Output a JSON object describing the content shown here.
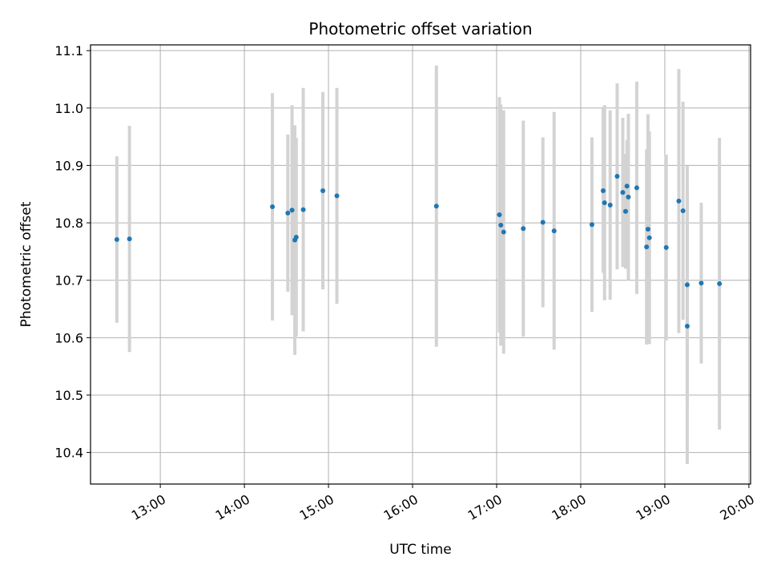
{
  "chart_data": {
    "type": "scatter",
    "title": "Photometric offset variation",
    "xlabel": "UTC time",
    "ylabel": "Photometric offset",
    "x_tick_labels": [
      "13:00",
      "14:00",
      "15:00",
      "16:00",
      "17:00",
      "18:00",
      "19:00",
      "20:00"
    ],
    "x_tick_hours": [
      13,
      14,
      15,
      16,
      17,
      18,
      19,
      20
    ],
    "xlim_hours": [
      12.17,
      20.02
    ],
    "y_tick_labels": [
      "10.4",
      "10.5",
      "10.6",
      "10.7",
      "10.8",
      "10.9",
      "11.0",
      "11.1"
    ],
    "y_ticks": [
      10.4,
      10.5,
      10.6,
      10.7,
      10.8,
      10.9,
      11.0,
      11.1
    ],
    "ylim": [
      10.345,
      11.11
    ],
    "grid": true,
    "point_color": "#1f77b4",
    "errorbar_color": "#d3d3d3",
    "points": [
      {
        "t": "12:29",
        "y": 10.771,
        "err": 0.145
      },
      {
        "t": "12:38",
        "y": 10.772,
        "err": 0.197
      },
      {
        "t": "14:20",
        "y": 10.828,
        "err": 0.198
      },
      {
        "t": "14:31",
        "y": 10.817,
        "err": 0.137
      },
      {
        "t": "14:34",
        "y": 10.822,
        "err": 0.183
      },
      {
        "t": "14:36",
        "y": 10.77,
        "err": 0.2
      },
      {
        "t": "14:37",
        "y": 10.775,
        "err": 0.173
      },
      {
        "t": "14:42",
        "y": 10.823,
        "err": 0.212
      },
      {
        "t": "14:56",
        "y": 10.856,
        "err": 0.172
      },
      {
        "t": "15:06",
        "y": 10.847,
        "err": 0.188
      },
      {
        "t": "16:17",
        "y": 10.829,
        "err": 0.245
      },
      {
        "t": "17:02",
        "y": 10.814,
        "err": 0.205
      },
      {
        "t": "17:03",
        "y": 10.796,
        "err": 0.21
      },
      {
        "t": "17:05",
        "y": 10.784,
        "err": 0.212
      },
      {
        "t": "17:19",
        "y": 10.79,
        "err": 0.188
      },
      {
        "t": "17:33",
        "y": 10.801,
        "err": 0.148
      },
      {
        "t": "17:41",
        "y": 10.786,
        "err": 0.207
      },
      {
        "t": "18:08",
        "y": 10.797,
        "err": 0.152
      },
      {
        "t": "18:16",
        "y": 10.856,
        "err": 0.143
      },
      {
        "t": "18:17",
        "y": 10.835,
        "err": 0.17
      },
      {
        "t": "18:21",
        "y": 10.831,
        "err": 0.165
      },
      {
        "t": "18:26",
        "y": 10.881,
        "err": 0.162
      },
      {
        "t": "18:30",
        "y": 10.853,
        "err": 0.13
      },
      {
        "t": "18:32",
        "y": 10.82,
        "err": 0.1
      },
      {
        "t": "18:33",
        "y": 10.864,
        "err": 0.08
      },
      {
        "t": "18:34",
        "y": 10.845,
        "err": 0.145
      },
      {
        "t": "18:40",
        "y": 10.861,
        "err": 0.185
      },
      {
        "t": "18:47",
        "y": 10.758,
        "err": 0.17
      },
      {
        "t": "18:48",
        "y": 10.789,
        "err": 0.2
      },
      {
        "t": "18:49",
        "y": 10.774,
        "err": 0.185
      },
      {
        "t": "19:01",
        "y": 10.757,
        "err": 0.162
      },
      {
        "t": "19:10",
        "y": 10.838,
        "err": 0.23
      },
      {
        "t": "19:13",
        "y": 10.821,
        "err": 0.19
      },
      {
        "t": "19:16",
        "y": 10.692,
        "err": 0.207
      },
      {
        "t": "19:16",
        "y": 10.62,
        "err": 0.24
      },
      {
        "t": "19:26",
        "y": 10.695,
        "err": 0.14
      },
      {
        "t": "19:39",
        "y": 10.694,
        "err": 0.254
      }
    ]
  }
}
